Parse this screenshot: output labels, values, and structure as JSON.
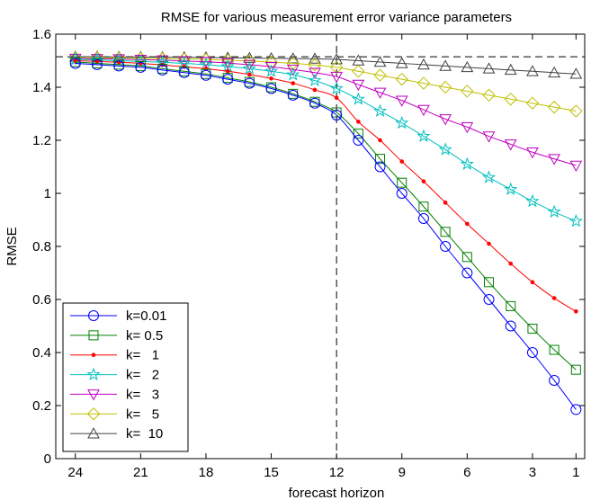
{
  "chart_data": {
    "type": "line",
    "title": "RMSE for various measurement error variance parameters",
    "xlabel": "forecast horizon",
    "ylabel": "RMSE",
    "x": [
      24,
      23,
      22,
      21,
      20,
      19,
      18,
      17,
      16,
      15,
      14,
      13,
      12,
      11,
      10,
      9,
      8,
      7,
      6,
      5,
      4,
      3,
      2,
      1
    ],
    "xlim": [
      24.9,
      0.6
    ],
    "x_reversed": true,
    "ylim": [
      0,
      1.6
    ],
    "xticks": [
      24,
      21,
      18,
      15,
      12,
      9,
      6,
      3,
      1
    ],
    "xtick_labels": [
      "24",
      "21",
      "18",
      "15",
      "12",
      "9",
      "6",
      "3",
      "1"
    ],
    "yticks": [
      0,
      0.2,
      0.4,
      0.6,
      0.8,
      1,
      1.2,
      1.4,
      1.6
    ],
    "ytick_labels": [
      "0",
      "0.2",
      "0.4",
      "0.6",
      "0.8",
      "1",
      "1.2",
      "1.4",
      "1.6"
    ],
    "reference_lines": {
      "horizontal_y": 1.515,
      "vertical_x": 12
    },
    "legend_position": "bottom-left",
    "grid": false,
    "series": [
      {
        "name": "k=0.01",
        "color": "#0000ff",
        "marker": "circle",
        "values": [
          1.49,
          1.485,
          1.48,
          1.475,
          1.465,
          1.455,
          1.445,
          1.43,
          1.415,
          1.395,
          1.37,
          1.34,
          1.295,
          1.2,
          1.1,
          1.0,
          0.905,
          0.8,
          0.7,
          0.6,
          0.5,
          0.4,
          0.295,
          0.185
        ]
      },
      {
        "name": "k= 0.5",
        "color": "#008000",
        "marker": "square",
        "values": [
          1.495,
          1.49,
          1.485,
          1.48,
          1.47,
          1.46,
          1.45,
          1.435,
          1.42,
          1.4,
          1.375,
          1.345,
          1.305,
          1.225,
          1.13,
          1.04,
          0.95,
          0.855,
          0.76,
          0.665,
          0.575,
          0.49,
          0.41,
          0.335
        ]
      },
      {
        "name": "k=   1",
        "color": "#ff0000",
        "marker": "dot",
        "values": [
          1.5,
          1.497,
          1.494,
          1.49,
          1.484,
          1.477,
          1.47,
          1.46,
          1.448,
          1.433,
          1.415,
          1.39,
          1.36,
          1.27,
          1.2,
          1.12,
          1.045,
          0.965,
          0.885,
          0.81,
          0.735,
          0.665,
          0.605,
          0.555
        ]
      },
      {
        "name": "k=   2",
        "color": "#00bfbf",
        "marker": "star",
        "values": [
          1.505,
          1.503,
          1.5,
          1.497,
          1.494,
          1.49,
          1.485,
          1.478,
          1.47,
          1.46,
          1.447,
          1.425,
          1.395,
          1.355,
          1.31,
          1.265,
          1.215,
          1.165,
          1.11,
          1.06,
          1.015,
          0.97,
          0.93,
          0.895
        ]
      },
      {
        "name": "k=   3",
        "color": "#bf00bf",
        "marker": "triangle-down",
        "values": [
          1.508,
          1.507,
          1.506,
          1.504,
          1.502,
          1.499,
          1.496,
          1.491,
          1.485,
          1.477,
          1.467,
          1.455,
          1.44,
          1.41,
          1.38,
          1.35,
          1.315,
          1.28,
          1.25,
          1.215,
          1.185,
          1.155,
          1.13,
          1.105
        ]
      },
      {
        "name": "k=   5",
        "color": "#bfbf00",
        "marker": "diamond",
        "values": [
          1.511,
          1.511,
          1.51,
          1.509,
          1.508,
          1.507,
          1.505,
          1.502,
          1.499,
          1.495,
          1.49,
          1.484,
          1.475,
          1.46,
          1.445,
          1.43,
          1.415,
          1.4,
          1.385,
          1.37,
          1.355,
          1.34,
          1.325,
          1.31
        ]
      },
      {
        "name": "k=  10",
        "color": "#404040",
        "marker": "triangle-up",
        "values": [
          1.515,
          1.515,
          1.514,
          1.514,
          1.513,
          1.513,
          1.512,
          1.511,
          1.51,
          1.509,
          1.508,
          1.507,
          1.505,
          1.5,
          1.495,
          1.49,
          1.485,
          1.48,
          1.475,
          1.47,
          1.465,
          1.46,
          1.455,
          1.45
        ]
      }
    ]
  }
}
